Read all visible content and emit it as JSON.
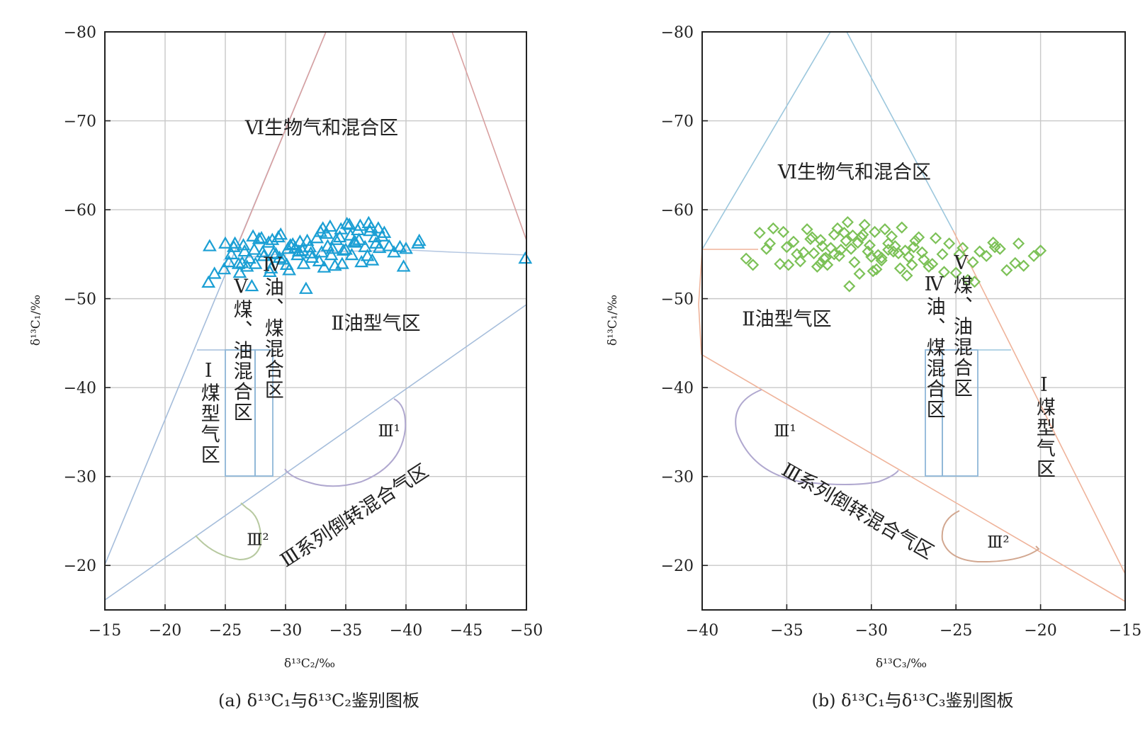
{
  "chart_data": [
    {
      "id": "a",
      "type": "scatter",
      "caption": "(a) δ¹³C₁与δ¹³C₂鉴别图板",
      "xlabel": "δ¹³C₂/‰",
      "ylabel": "δ¹³C₁/‰",
      "xlim": [
        -15,
        -50
      ],
      "ylim": [
        -15,
        -80
      ],
      "x_ticks": [
        -15,
        -20,
        -25,
        -30,
        -35,
        -40,
        -45,
        -50
      ],
      "y_ticks": [
        -20,
        -30,
        -40,
        -50,
        -60,
        -70,
        -80
      ],
      "grid": true,
      "marker": "triangle",
      "marker_color": "#1b9fd4",
      "region_labels": [
        {
          "text": "Ⅵ生物气和混合区",
          "x": -33,
          "y": -68.5,
          "orient": "h",
          "size": "large"
        },
        {
          "text": "Ⅱ油型气区",
          "x": -37.5,
          "y": -46.5,
          "orient": "h",
          "size": "large"
        },
        {
          "text": "Ⅴ煤、油混合区",
          "x": -26.3,
          "y": -44.3,
          "orient": "v",
          "size": "large"
        },
        {
          "text": "Ⅳ油、煤混合区",
          "x": -28.9,
          "y": -46.8,
          "orient": "v",
          "size": "large"
        },
        {
          "text": "Ⅰ煤型气区",
          "x": -23.6,
          "y": -37.2,
          "orient": "v",
          "size": "large"
        },
        {
          "text": "Ⅲ¹",
          "x": -38.6,
          "y": -34.5,
          "orient": "h",
          "size": "small"
        },
        {
          "text": "Ⅲ²",
          "x": -27.7,
          "y": -22.3,
          "orient": "h",
          "size": "small"
        },
        {
          "text": "Ⅲ系列倒转混合气区",
          "x": -36.0,
          "y": -25.0,
          "orient": "r",
          "size": "large"
        }
      ],
      "points": {
        "x": [
          -23.7,
          -24.1,
          -25.0,
          -25.3,
          -25.7,
          -26.1,
          -26.5,
          -27.0,
          -27.4,
          -27.8,
          -28.2,
          -28.6,
          -29.0,
          -29.4,
          -29.8,
          -30.2,
          -30.6,
          -31.0,
          -31.4,
          -31.8,
          -32.2,
          -32.6,
          -33.0,
          -33.4,
          -33.8,
          -34.2,
          -34.6,
          -35.0,
          -35.4,
          -35.8,
          -36.2,
          -36.6,
          -37.0,
          -37.4,
          -37.8,
          -38.2,
          -38.6,
          -39.0,
          -39.5,
          -39.8,
          -40.0,
          -41.1,
          -49.9,
          -24.9,
          -25.5,
          -26.2,
          -26.8,
          -27.5,
          -28.1,
          -28.8,
          -29.5,
          -30.1,
          -30.8,
          -31.5,
          -32.1,
          -32.8,
          -33.5,
          -34.1,
          -34.8,
          -35.5,
          -36.1,
          -36.8,
          -37.5,
          -23.6,
          -25.8,
          -26.6,
          -27.3,
          -28.0,
          -28.9,
          -29.6,
          -30.4,
          -31.2,
          -32.0,
          -32.9,
          -33.7,
          -34.5,
          -35.3,
          -36.0,
          -36.9,
          -37.7,
          -27.2,
          -28.7,
          -30.3,
          -31.7,
          -33.2,
          -34.7,
          -36.3,
          -37.2,
          -26.4,
          -29.2,
          -31.1,
          -33.9,
          -35.7,
          -38.0,
          -41.0,
          -33.1,
          -35.1,
          -37.1
        ],
        "y": [
          -55.9,
          -52.8,
          -56.2,
          -54.1,
          -55.8,
          -53.9,
          -56.0,
          -54.5,
          -55.5,
          -56.7,
          -54.8,
          -56.3,
          -55.1,
          -56.9,
          -54.4,
          -55.6,
          -56.1,
          -54.9,
          -55.4,
          -56.5,
          -54.6,
          -56.8,
          -55.2,
          -57.3,
          -54.9,
          -56.6,
          -57.8,
          -55.5,
          -57.1,
          -56.3,
          -58.2,
          -55.8,
          -57.6,
          -56.9,
          -55.7,
          -57.4,
          -55.9,
          -55.2,
          -55.8,
          -53.6,
          -55.6,
          -56.5,
          -54.5,
          -53.3,
          -55.0,
          -52.9,
          -53.6,
          -53.9,
          -55.2,
          -53.4,
          -54.6,
          -53.8,
          -55.7,
          -53.9,
          -55.1,
          -54.2,
          -55.9,
          -53.7,
          -55.4,
          -54.9,
          -56.6,
          -54.8,
          -56.2,
          -51.8,
          -56.2,
          -55.3,
          -57.0,
          -56.8,
          -56.6,
          -57.2,
          -56.0,
          -56.4,
          -55.8,
          -57.5,
          -58.1,
          -56.9,
          -58.3,
          -57.7,
          -58.5,
          -57.9,
          -51.4,
          -53.0,
          -53.2,
          -51.1,
          -53.5,
          -53.9,
          -54.1,
          -54.3,
          -54.0,
          -55.0,
          -55.3,
          -55.6,
          -56.4,
          -57.0,
          -56.2,
          -57.9,
          -58.4,
          -58.0
        ]
      }
    },
    {
      "id": "b",
      "type": "scatter",
      "caption": "(b) δ¹³C₁与δ¹³C₃鉴别图板",
      "xlabel": "δ¹³C₃/‰",
      "ylabel": "δ¹³C₁/‰",
      "xlim": [
        -40,
        -15
      ],
      "ylim": [
        -15,
        -80
      ],
      "x_ticks": [
        -40,
        -35,
        -30,
        -25,
        -20,
        -15
      ],
      "y_ticks": [
        -20,
        -30,
        -40,
        -50,
        -60,
        -70,
        -80
      ],
      "grid": true,
      "marker": "diamond",
      "marker_color": "#7cc157",
      "region_labels": [
        {
          "text": "Ⅵ生物气和混合区",
          "x": -31.0,
          "y": -63.5,
          "orient": "h",
          "size": "large"
        },
        {
          "text": "Ⅱ油型气区",
          "x": -35.0,
          "y": -47.0,
          "orient": "h",
          "size": "large"
        },
        {
          "text": "Ⅳ油、煤混合区",
          "x": -26.3,
          "y": -44.6,
          "orient": "v",
          "size": "large"
        },
        {
          "text": "Ⅴ煤、油混合区",
          "x": -24.7,
          "y": -47.0,
          "orient": "v",
          "size": "large"
        },
        {
          "text": "Ⅰ煤型气区",
          "x": -19.8,
          "y": -35.6,
          "orient": "v",
          "size": "large"
        },
        {
          "text": "Ⅲ¹",
          "x": -35.1,
          "y": -34.5,
          "orient": "h",
          "size": "small"
        },
        {
          "text": "Ⅲ²",
          "x": -22.5,
          "y": -22.0,
          "orient": "h",
          "size": "small"
        },
        {
          "text": "Ⅲ系列倒转混合气区",
          "x": -31.0,
          "y": -25.5,
          "orient": "f",
          "size": "large"
        }
      ],
      "points": {
        "x": [
          -37.4,
          -37.0,
          -36.6,
          -36.2,
          -35.8,
          -35.4,
          -35.0,
          -34.6,
          -34.2,
          -33.8,
          -33.4,
          -33.0,
          -32.6,
          -32.2,
          -31.8,
          -31.4,
          -31.0,
          -30.6,
          -30.2,
          -29.8,
          -29.4,
          -29.0,
          -28.6,
          -28.2,
          -27.8,
          -27.4,
          -27.0,
          -26.6,
          -26.2,
          -25.8,
          -25.4,
          -25.0,
          -24.6,
          -24.0,
          -23.6,
          -23.2,
          -22.8,
          -22.4,
          -22.0,
          -21.5,
          -21.0,
          -20.4,
          -20.0,
          -36.0,
          -35.2,
          -34.4,
          -33.6,
          -32.8,
          -32.0,
          -31.2,
          -30.4,
          -29.6,
          -28.8,
          -28.0,
          -27.2,
          -26.4,
          -33.2,
          -32.4,
          -31.6,
          -30.8,
          -30.0,
          -29.2,
          -28.4,
          -27.6,
          -34.0,
          -31.9,
          -30.1,
          -28.3,
          -32.9,
          -31.1,
          -29.4,
          -27.5,
          -33.5,
          -30.7,
          -29.9,
          -31.5,
          -33.0,
          -29.0,
          -30.5,
          -32.2,
          -34.9,
          -24.3,
          -24.8,
          -23.9,
          -22.7,
          -21.3,
          -25.7,
          -26.9,
          -28.7,
          -31.3,
          -29.7,
          -32.7,
          -27.9
        ],
        "y": [
          -54.5,
          -53.8,
          -57.4,
          -55.6,
          -57.9,
          -53.9,
          -55.8,
          -56.4,
          -54.2,
          -57.8,
          -55.1,
          -56.6,
          -53.8,
          -57.2,
          -55.5,
          -58.6,
          -54.1,
          -56.9,
          -55.3,
          -57.5,
          -54.6,
          -56.2,
          -55.9,
          -58.0,
          -54.7,
          -56.5,
          -55.2,
          -53.6,
          -56.8,
          -55.0,
          -56.2,
          -52.9,
          -55.7,
          -54.1,
          -55.3,
          -54.8,
          -56.3,
          -55.6,
          -53.2,
          -54.0,
          -53.7,
          -54.8,
          -55.4,
          -56.2,
          -57.5,
          -55.0,
          -56.7,
          -54.5,
          -57.9,
          -55.6,
          -58.3,
          -54.9,
          -57.0,
          -55.4,
          -56.9,
          -53.9,
          -53.6,
          -55.7,
          -57.4,
          -56.3,
          -54.7,
          -57.8,
          -55.1,
          -53.8,
          -55.2,
          -54.8,
          -56.0,
          -53.4,
          -55.9,
          -57.1,
          -54.3,
          -55.8,
          -56.9,
          -52.8,
          -53.1,
          -56.5,
          -54.0,
          -55.5,
          -57.2,
          -55.0,
          -53.8,
          -52.1,
          -55.0,
          -51.9,
          -55.8,
          -56.2,
          -53.0,
          -54.4,
          -55.3,
          -51.4,
          -53.3,
          -54.6,
          -52.6
        ]
      }
    }
  ]
}
